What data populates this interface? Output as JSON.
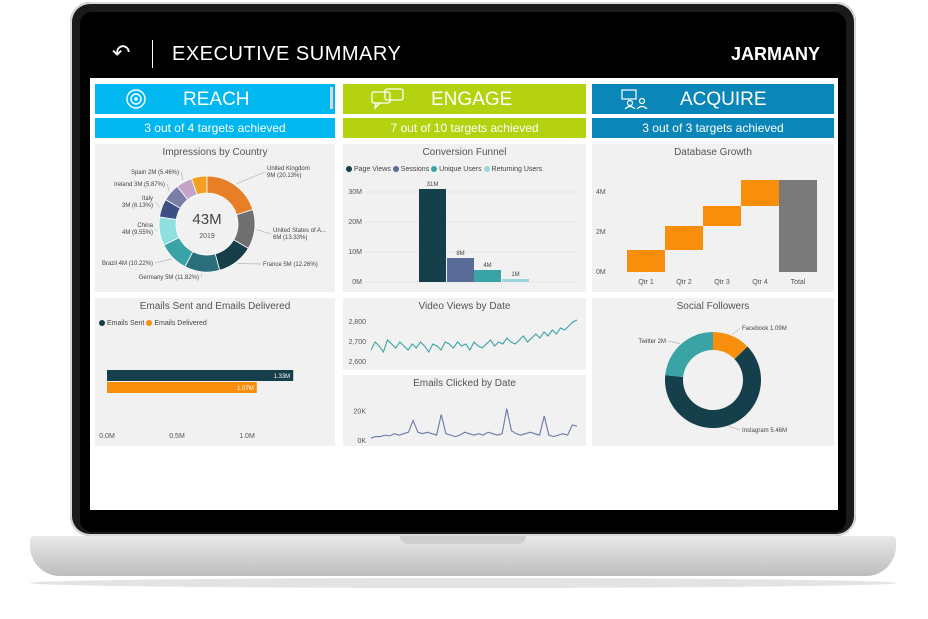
{
  "header": {
    "title": "EXECUTIVE SUMMARY",
    "brand": "JARMANY",
    "back_icon": "back-arrow-icon"
  },
  "sections": [
    {
      "label": "REACH",
      "subtitle": "3 out of 4 targets achieved",
      "color": "#00b7f0",
      "sub_color": "#00b7f0",
      "icon": "broadcast-icon"
    },
    {
      "label": "ENGAGE",
      "subtitle": "7 out of 10 targets achieved",
      "color": "#b4d20f",
      "sub_color": "#b4d20f",
      "icon": "chat-bubbles-icon"
    },
    {
      "label": "ACQUIRE",
      "subtitle": "3 out of 3 targets achieved",
      "color": "#0b86b8",
      "sub_color": "#0b86b8",
      "icon": "people-icon"
    }
  ],
  "chart_data": [
    {
      "type": "pie",
      "title": "Impressions by Country",
      "center_value": "43M",
      "center_label": "2019",
      "slices": [
        {
          "label": "United Kingdom",
          "detail": "9M (20.13%)",
          "value": 20.13,
          "color": "#e87f26"
        },
        {
          "label": "United States of A...",
          "detail": "6M (13.33%)",
          "value": 13.33,
          "color": "#707070"
        },
        {
          "label": "France",
          "detail": "5M (12.26%)",
          "value": 12.26,
          "color": "#173f4a"
        },
        {
          "label": "Germany",
          "detail": "5M (11.82%)",
          "value": 11.82,
          "color": "#2a6f7b"
        },
        {
          "label": "Brazil",
          "detail": "4M (10.22%)",
          "value": 10.22,
          "color": "#3aa3a6"
        },
        {
          "label": "China",
          "detail": "4M (9.55%)",
          "value": 9.55,
          "color": "#90dfe0"
        },
        {
          "label": "Italy",
          "detail": "3M (6.13%)",
          "value": 6.13,
          "color": "#3e4f86"
        },
        {
          "label": "Ireland",
          "detail": "3M (5.87%)",
          "value": 5.87,
          "color": "#7a7fa8"
        },
        {
          "label": "Spain",
          "detail": "2M (5.46%)",
          "value": 5.46,
          "color": "#c3a3c8"
        },
        {
          "label": "",
          "detail": "",
          "value": 5.23,
          "color": "#f4a024"
        }
      ]
    },
    {
      "type": "bar",
      "title": "Conversion Funnel",
      "categories": [
        "Page Views",
        "Sessions",
        "Unique Users",
        "Returning Users"
      ],
      "values": [
        31,
        8,
        4,
        1
      ],
      "data_labels": [
        "31M",
        "8M",
        "4M",
        "1M"
      ],
      "colors": [
        "#163f4c",
        "#5a6b97",
        "#3aa3a6",
        "#9ad6dc"
      ],
      "yticks": [
        "0M",
        "10M",
        "20M",
        "30M"
      ],
      "ylim": [
        0,
        34
      ]
    },
    {
      "type": "bar",
      "title": "Database Growth",
      "categories": [
        "Qtr 1",
        "Qtr 2",
        "Qtr 3",
        "Qtr 4",
        "Total"
      ],
      "steps": [
        [
          0,
          1.1
        ],
        [
          1.1,
          2.3
        ],
        [
          2.3,
          3.3
        ],
        [
          3.3,
          4.6
        ],
        [
          0,
          4.6
        ]
      ],
      "colors": [
        "#f78f0c",
        "#f78f0c",
        "#f78f0c",
        "#f78f0c",
        "#7a7a7a"
      ],
      "yticks": [
        "0M",
        "2M",
        "4M"
      ],
      "ylim": [
        0,
        5
      ]
    },
    {
      "type": "bar",
      "title": "Emails Sent and Emails Delivered",
      "series": [
        {
          "name": "Emails Sent",
          "value": 1.33,
          "label": "1.33M",
          "color": "#163f4c"
        },
        {
          "name": "Emails Delivered",
          "value": 1.07,
          "label": "1.07M",
          "color": "#f78f0c"
        }
      ],
      "xticks": [
        "0.0M",
        "0.5M",
        "1.0M"
      ],
      "xlim": [
        0,
        1.6
      ]
    },
    {
      "type": "line",
      "title": "Video Views by Date",
      "yticks": [
        "2,600",
        "2,700",
        "2,800"
      ],
      "ylim": [
        2580,
        2830
      ],
      "values": [
        2660,
        2700,
        2680,
        2650,
        2710,
        2690,
        2670,
        2700,
        2680,
        2660,
        2690,
        2670,
        2700,
        2680,
        2650,
        2690,
        2680,
        2660,
        2700,
        2690,
        2670,
        2700,
        2680,
        2690,
        2660,
        2700,
        2680,
        2670,
        2690,
        2710,
        2680,
        2700,
        2690,
        2720,
        2700,
        2690,
        2710,
        2730,
        2700,
        2720,
        2740,
        2720,
        2750,
        2730,
        2760,
        2740,
        2770,
        2760,
        2780,
        2800,
        2810
      ],
      "color": "#3aa3a6"
    },
    {
      "type": "line",
      "title": "Emails Clicked by Date",
      "yticks": [
        "0K",
        "20K"
      ],
      "ylim": [
        0,
        30000
      ],
      "values": [
        2000,
        3000,
        3000,
        4000,
        3500,
        5000,
        4000,
        5000,
        6000,
        14000,
        6000,
        5000,
        6000,
        5000,
        4000,
        18000,
        5000,
        4000,
        3000,
        4000,
        6000,
        5000,
        4000,
        5000,
        4000,
        6000,
        5000,
        4000,
        5000,
        22000,
        7000,
        5000,
        4000,
        5000,
        6000,
        5000,
        4000,
        17000,
        4000,
        3000,
        4000,
        5000,
        4000,
        11000,
        10000
      ],
      "color": "#6a7aa8"
    },
    {
      "type": "pie",
      "title": "Social Followers",
      "slices": [
        {
          "label": "Facebook",
          "detail": "1.09M",
          "value": 1.09,
          "color": "#f78f0c"
        },
        {
          "label": "Instagram",
          "detail": "5.46M",
          "value": 5.46,
          "color": "#163f4c"
        },
        {
          "label": "Twitter",
          "detail": "2M",
          "value": 2.0,
          "color": "#3aa3a6"
        }
      ]
    }
  ]
}
